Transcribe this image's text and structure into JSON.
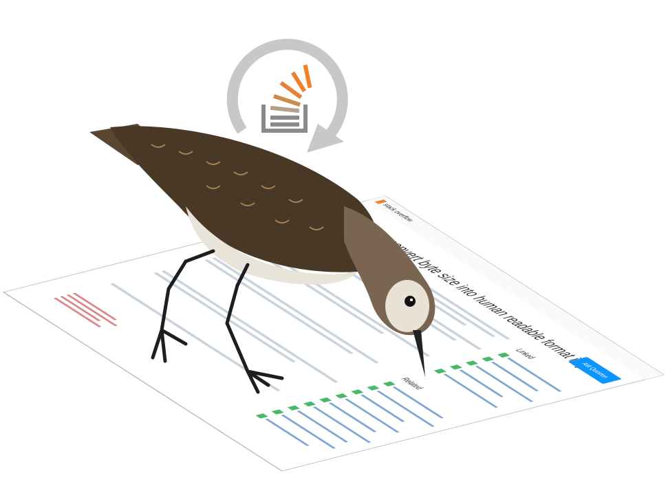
{
  "logo": {
    "name": "stack overflow"
  },
  "question": {
    "title": "How to convert byte size into human readable format in java?"
  },
  "sidebar": {
    "linked": "Linked",
    "related": "Related"
  },
  "button": {
    "ask": "Ask Question"
  }
}
